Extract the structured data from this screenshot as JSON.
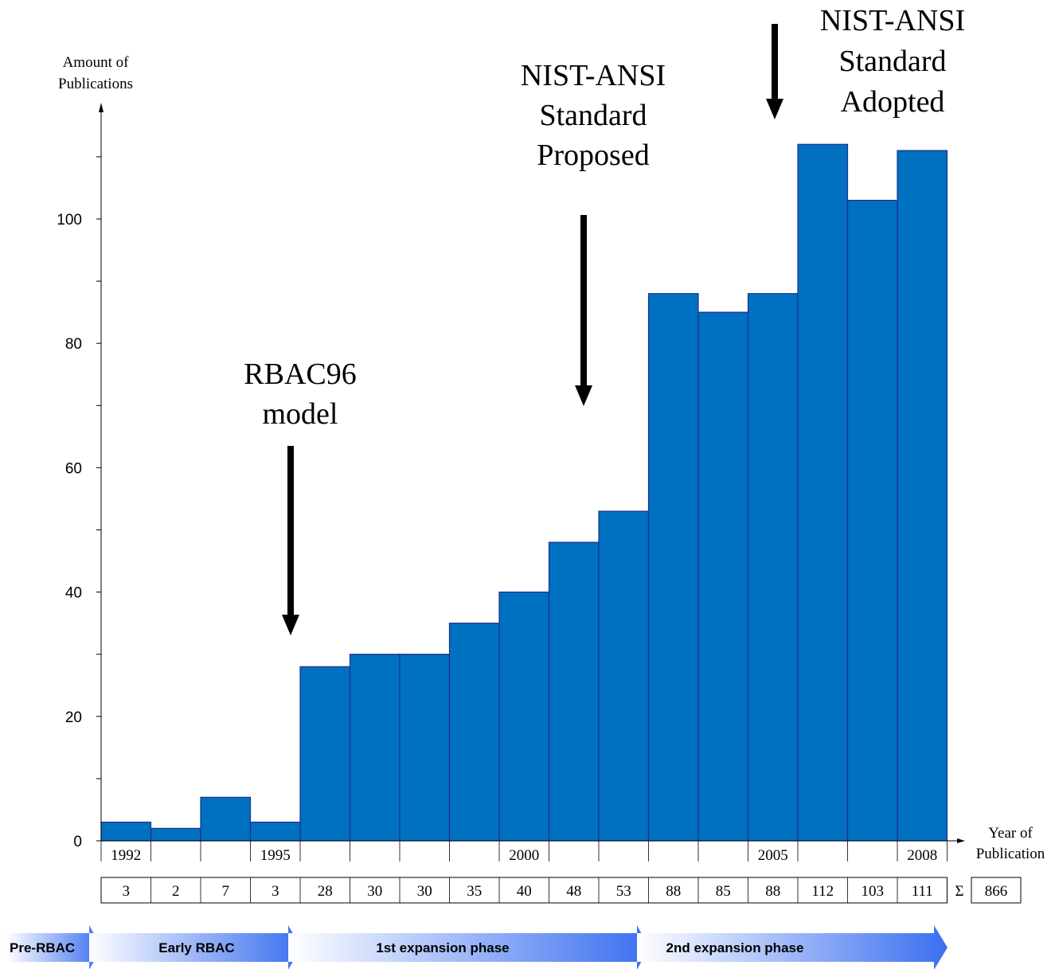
{
  "chart_data": {
    "type": "bar",
    "x": [
      1992,
      1993,
      1994,
      1995,
      1996,
      1997,
      1998,
      1999,
      2000,
      2001,
      2002,
      2003,
      2004,
      2005,
      2006,
      2007,
      2008
    ],
    "values": [
      3,
      2,
      7,
      3,
      28,
      30,
      30,
      35,
      40,
      48,
      53,
      88,
      85,
      88,
      112,
      103,
      111
    ],
    "ylabel": "Amount of Publications",
    "xlabel": "Year of Publication",
    "ylim": [
      0,
      115
    ],
    "y_ticks": [
      0,
      20,
      40,
      60,
      80,
      100
    ],
    "x_tick_labels": [
      "1992",
      "1995",
      "2000",
      "2005",
      "2008"
    ],
    "bar_color": "#0070C0",
    "bar_edge_color": "#1F2F8A",
    "table_values": [
      "3",
      "2",
      "7",
      "3",
      "28",
      "30",
      "30",
      "35",
      "40",
      "48",
      "53",
      "88",
      "85",
      "88",
      "112",
      "103",
      "111"
    ],
    "sum_symbol": "Σ",
    "total": "866",
    "annotations": [
      {
        "lines": [
          "RBAC96",
          "model"
        ],
        "year": 1995.5
      },
      {
        "lines": [
          "NIST-ANSI",
          "Standard",
          "Proposed"
        ],
        "year": 2001.5
      },
      {
        "lines": [
          "NIST-ANSI",
          "Standard",
          "Adopted"
        ],
        "year": 2005.5
      }
    ],
    "phases": [
      "Pre-RBAC",
      "Early RBAC",
      "1st expansion phase",
      "2nd expansion phase"
    ]
  }
}
